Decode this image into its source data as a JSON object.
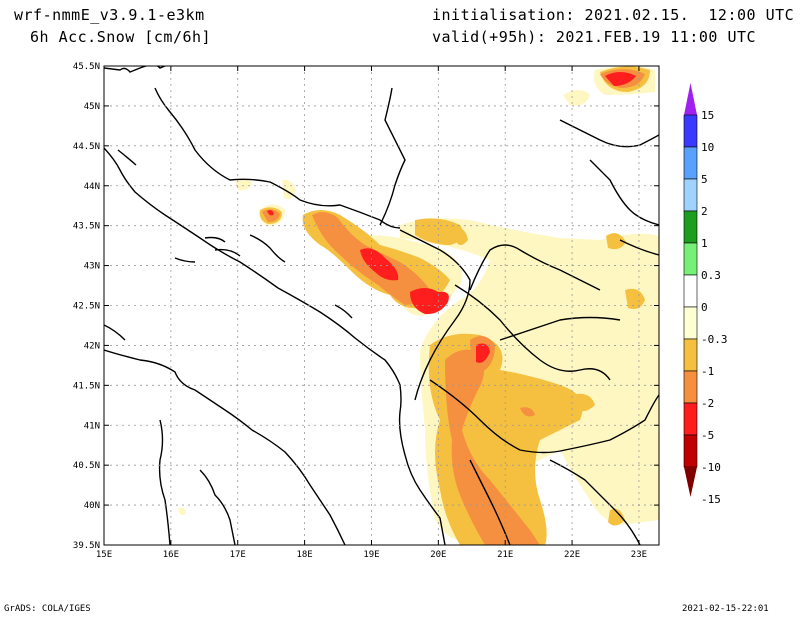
{
  "header": {
    "model": "wrf-nmmE_v3.9.1-e3km",
    "field": "6h Acc.Snow [cm/6h]",
    "init": "initialisation: 2021.02.15.  12:00 UTC",
    "valid": "valid(+95h): 2021.FEB.19 11:00 UTC"
  },
  "footer": {
    "left": "GrADS: COLA/IGES",
    "right": "2021-02-15-22:01"
  },
  "map": {
    "lat_labels": [
      "45.5N",
      "45N",
      "44.5N",
      "44N",
      "43.5N",
      "43N",
      "42.5N",
      "42N",
      "41.5N",
      "41N",
      "40.5N",
      "40N",
      "39.5N"
    ],
    "lon_labels": [
      "15E",
      "16E",
      "17E",
      "18E",
      "19E",
      "20E",
      "21E",
      "22E",
      "23E"
    ],
    "lat_range": [
      39.5,
      45.5
    ],
    "lon_range": [
      15,
      23.3
    ]
  },
  "colorbar": {
    "labels": [
      "15",
      "10",
      "5",
      "2",
      "1",
      "0.3",
      "0",
      "-0.3",
      "-1",
      "-2",
      "-5",
      "-10",
      "-15"
    ],
    "colors": [
      "#a020f0",
      "#3a3aff",
      "#5aa0ff",
      "#a0d2ff",
      "#1e9e1e",
      "#78f078",
      "#ffffff",
      "#ffffd4",
      "#f5c040",
      "#f59040",
      "#ff1e1e",
      "#c00000",
      "#800000"
    ]
  },
  "snow_colors": {
    "pale": "#fff7c2",
    "light": "#f5c040",
    "mid": "#f59040",
    "red": "#ff1e1e"
  }
}
